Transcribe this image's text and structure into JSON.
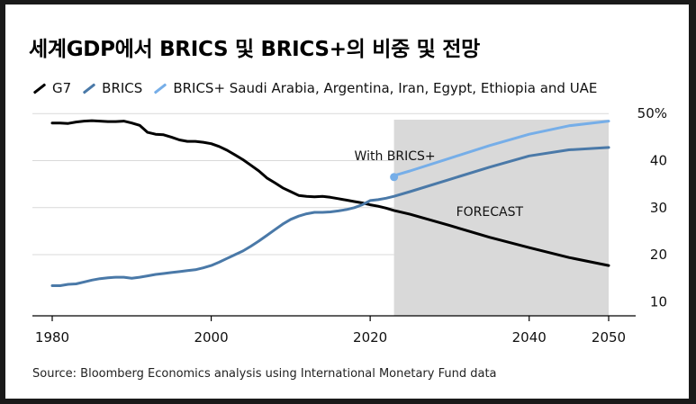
{
  "title": "세계GDP에서 BRICS 및 BRICS+의 비중 및 전망",
  "source": "Source: Bloomberg Economics analysis using International Monetary Fund data",
  "colors": {
    "g7": "#000000",
    "brics": "#4a79a8",
    "brics_plus": "#76aee8",
    "forecast_shade": "#d9d9d9",
    "grid": "#d9d9d9",
    "frame_bg": "#ffffff",
    "outer_bg": "#1a1a1a"
  },
  "chart_data": {
    "type": "line",
    "title": "세계GDP에서 BRICS 및 BRICS+의 비중 및 전망",
    "xlabel": "",
    "ylabel": "",
    "xlim": [
      1980,
      2053
    ],
    "ylim": [
      7,
      51
    ],
    "x_ticks": [
      1980,
      2000,
      2020,
      2040,
      2050
    ],
    "y_ticks": [
      10,
      20,
      30,
      40,
      50
    ],
    "y_tick_labels": [
      "10",
      "20",
      "30",
      "40",
      "50%"
    ],
    "forecast": {
      "start": 2023,
      "end": 2050,
      "label": "FORECAST"
    },
    "annotation": {
      "text": "With BRICS+",
      "x": 2023,
      "y": 36.5
    },
    "legend_position": "top-left",
    "series": [
      {
        "key": "g7",
        "name": "G7",
        "x": [
          1980,
          1981,
          1982,
          1983,
          1984,
          1985,
          1986,
          1987,
          1988,
          1989,
          1990,
          1991,
          1992,
          1993,
          1994,
          1995,
          1996,
          1997,
          1998,
          1999,
          2000,
          2001,
          2002,
          2003,
          2004,
          2005,
          2006,
          2007,
          2008,
          2009,
          2010,
          2011,
          2012,
          2013,
          2014,
          2015,
          2016,
          2017,
          2018,
          2019,
          2020,
          2021,
          2022,
          2023,
          2025,
          2030,
          2035,
          2040,
          2045,
          2050
        ],
        "values": [
          48.0,
          48.0,
          47.9,
          48.2,
          48.4,
          48.5,
          48.4,
          48.3,
          48.3,
          48.4,
          48.0,
          47.5,
          46.0,
          45.6,
          45.5,
          45.0,
          44.4,
          44.1,
          44.1,
          43.9,
          43.6,
          43.0,
          42.2,
          41.2,
          40.2,
          39.0,
          37.8,
          36.3,
          35.3,
          34.2,
          33.4,
          32.6,
          32.4,
          32.3,
          32.4,
          32.2,
          31.9,
          31.6,
          31.3,
          31.0,
          30.6,
          30.3,
          29.9,
          29.4,
          28.6,
          26.2,
          23.7,
          21.5,
          19.4,
          17.7
        ]
      },
      {
        "key": "brics",
        "name": "BRICS",
        "x": [
          1980,
          1981,
          1982,
          1983,
          1984,
          1985,
          1986,
          1987,
          1988,
          1989,
          1990,
          1991,
          1992,
          1993,
          1994,
          1995,
          1996,
          1997,
          1998,
          1999,
          2000,
          2001,
          2002,
          2003,
          2004,
          2005,
          2006,
          2007,
          2008,
          2009,
          2010,
          2011,
          2012,
          2013,
          2014,
          2015,
          2016,
          2017,
          2018,
          2019,
          2020,
          2021,
          2022,
          2023,
          2025,
          2030,
          2035,
          2040,
          2045,
          2050
        ],
        "values": [
          13.4,
          13.4,
          13.7,
          13.8,
          14.2,
          14.6,
          14.9,
          15.1,
          15.2,
          15.2,
          15.0,
          15.2,
          15.5,
          15.8,
          16.0,
          16.2,
          16.4,
          16.6,
          16.8,
          17.2,
          17.7,
          18.4,
          19.2,
          20.0,
          20.8,
          21.8,
          22.9,
          24.1,
          25.3,
          26.5,
          27.5,
          28.2,
          28.7,
          29.0,
          29.0,
          29.1,
          29.3,
          29.6,
          30.0,
          30.6,
          31.5,
          31.7,
          32.0,
          32.4,
          33.4,
          36.0,
          38.6,
          41.0,
          42.3,
          42.8
        ]
      },
      {
        "key": "brics_plus",
        "name": "BRICS+ Saudi Arabia, Argentina, Iran, Egypt, Ethiopia and UAE",
        "x": [
          2023,
          2025,
          2030,
          2035,
          2040,
          2045,
          2050
        ],
        "values": [
          36.8,
          37.8,
          40.5,
          43.2,
          45.6,
          47.4,
          48.4
        ]
      }
    ]
  }
}
